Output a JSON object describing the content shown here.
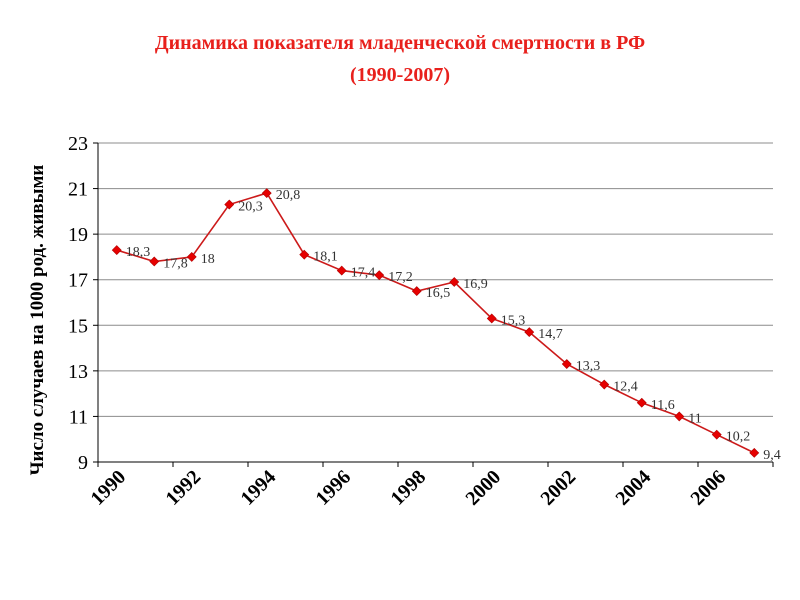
{
  "header": {
    "title_line1": "Динамика показателя младенческой смертности в РФ",
    "title_line2": "(1990-2007)"
  },
  "chart_data": {
    "type": "line",
    "title": "Динамика показателя младенческой смертности в РФ (1990-2007)",
    "xlabel": "",
    "ylabel": "Число случаев на 1000 род. живыми",
    "x": [
      1990,
      1991,
      1992,
      1993,
      1994,
      1995,
      1996,
      1997,
      1998,
      1999,
      2000,
      2001,
      2002,
      2003,
      2004,
      2005,
      2006,
      2007
    ],
    "series": [
      {
        "values": [
          18.3,
          17.8,
          18,
          20.3,
          20.8,
          18.1,
          17.4,
          17.2,
          16.5,
          16.9,
          15.3,
          14.7,
          13.3,
          12.4,
          11.6,
          11,
          10.2,
          9.4
        ]
      }
    ],
    "data_labels": [
      "18,3",
      "17,8",
      "18",
      "20,3",
      "20,8",
      "18,1",
      "17,4",
      "17,2",
      "16,5",
      "16,9",
      "15,3",
      "14,7",
      "13,3",
      "12,4",
      "11,6",
      "11",
      "10,2",
      "9,4"
    ],
    "x_tick_labels": [
      "1990",
      "1992",
      "1994",
      "1996",
      "1998",
      "2000",
      "2002",
      "2004",
      "2006"
    ],
    "y_tick_labels": [
      "9",
      "11",
      "13",
      "15",
      "17",
      "19",
      "21",
      "23"
    ],
    "ylim": [
      9,
      23
    ],
    "grid": true,
    "legend": "none",
    "colors": {
      "title": "#e8201c",
      "line": "#cc1a1a",
      "marker": "#e60000",
      "grid": "#8c8c8c",
      "text": "#000000"
    }
  }
}
